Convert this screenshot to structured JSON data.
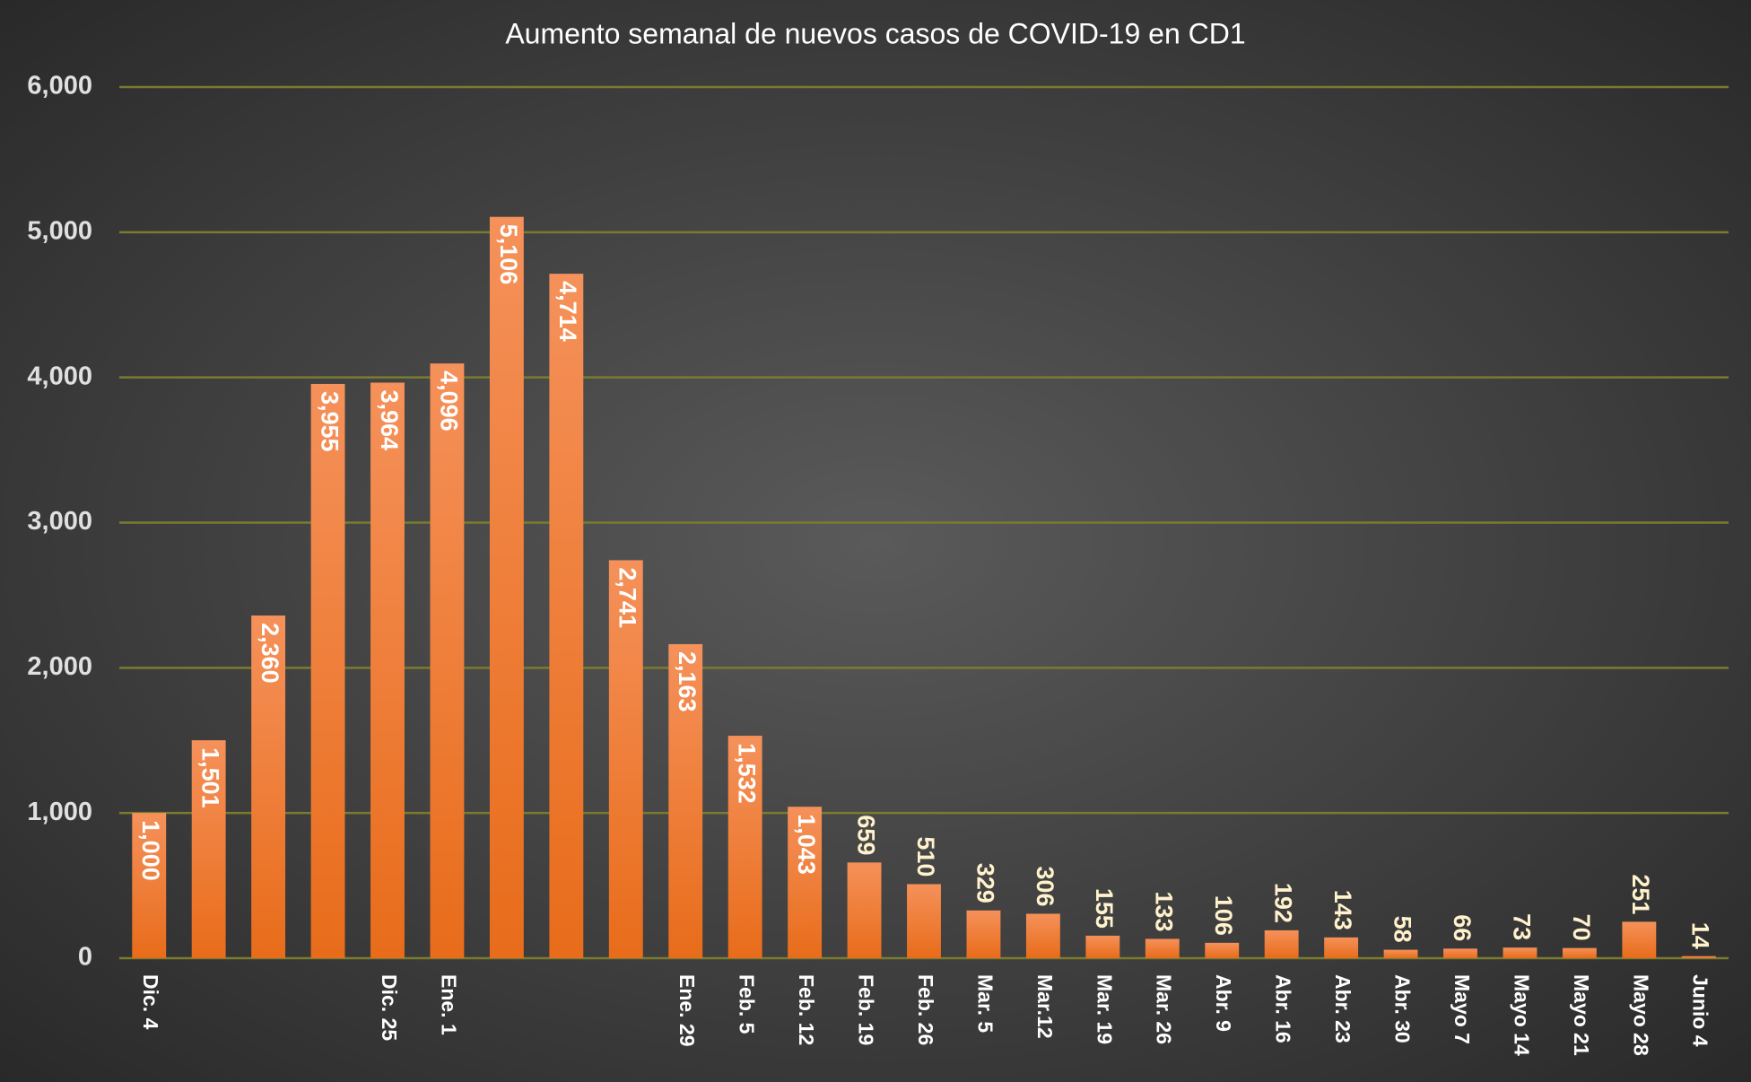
{
  "chart_data": {
    "type": "bar",
    "title": "Aumento semanal de nuevos casos de COVID-19 en CD1",
    "categories": [
      "Dic. 4",
      null,
      null,
      null,
      "Dic. 25",
      "Ene. 1",
      null,
      null,
      null,
      "Ene. 29",
      "Feb. 5",
      "Feb. 12",
      "Feb. 19",
      "Feb. 26",
      "Mar. 5",
      "Mar.12",
      "Mar. 19",
      "Mar. 26",
      "Abr. 9",
      "Abr. 16",
      "Abr. 23",
      "Abr. 30",
      "Mayo 7",
      "Mayo 14",
      "Mayo 21",
      "Mayo 28",
      "Junio 4"
    ],
    "values": [
      1000,
      1501,
      2360,
      3955,
      3964,
      4096,
      5106,
      4714,
      2741,
      2163,
      1532,
      1043,
      659,
      510,
      329,
      306,
      155,
      133,
      106,
      192,
      143,
      58,
      66,
      73,
      70,
      251,
      14
    ],
    "value_labels": [
      "1,000",
      "1,501",
      "2,360",
      "3,955",
      "3,964",
      "4,096",
      "5,106",
      "4,714",
      "2,741",
      "2,163",
      "1,532",
      "1,043",
      "659",
      "510",
      "329",
      "306",
      "155",
      "133",
      "106",
      "192",
      "143",
      "58",
      "66",
      "73",
      "70",
      "251",
      "14"
    ],
    "color": "#ee7d32",
    "ylim": [
      0,
      6000
    ],
    "yticks": [
      0,
      {
        "value": 1000,
        "label": "1,000"
      },
      {
        "value": 2000,
        "label": "2,000"
      },
      {
        "value": 3000,
        "label": "3,000"
      },
      {
        "value": 4000,
        "label": "4,000"
      },
      {
        "value": 5000,
        "label": "5,000"
      },
      {
        "value": 6000,
        "label": "6,000"
      }
    ],
    "grid": true
  }
}
